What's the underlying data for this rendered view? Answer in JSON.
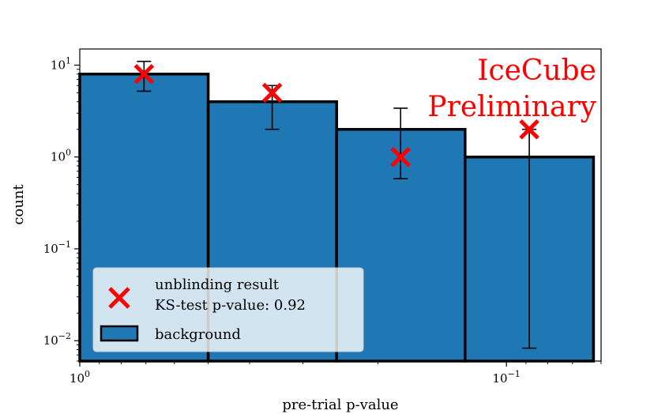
{
  "chart_data": {
    "type": "bar",
    "x_scale": "log-reversed",
    "y_scale": "log",
    "xlim": [
      1.0,
      0.06
    ],
    "ylim": [
      0.006,
      15
    ],
    "xlabel": "pre-trial p-value",
    "ylabel": "count",
    "x_ticks": [
      {
        "base": "10",
        "exp": "0",
        "value": 1.0
      },
      {
        "base": "10",
        "exp": "−1",
        "value": 0.1
      }
    ],
    "y_ticks": [
      {
        "base": "10",
        "exp": "1",
        "value": 10
      },
      {
        "base": "10",
        "exp": "0",
        "value": 1
      },
      {
        "base": "10",
        "exp": "−1",
        "value": 0.1
      },
      {
        "base": "10",
        "exp": "−2",
        "value": 0.01
      }
    ],
    "background": {
      "name": "background",
      "color": "#1f77b4",
      "bins": [
        {
          "x_from": 1.0,
          "x_to": 0.5,
          "count": 8
        },
        {
          "x_from": 0.5,
          "x_to": 0.25,
          "count": 4
        },
        {
          "x_from": 0.25,
          "x_to": 0.125,
          "count": 2
        },
        {
          "x_from": 0.125,
          "x_to": 0.0625,
          "count": 1
        }
      ],
      "errors": [
        {
          "x": 0.707,
          "low": 5.2,
          "high": 11.0
        },
        {
          "x": 0.354,
          "low": 2.0,
          "high": 6.0
        },
        {
          "x": 0.177,
          "low": 0.58,
          "high": 3.4
        },
        {
          "x": 0.0884,
          "low": 0.0083,
          "high": 2.0
        }
      ]
    },
    "unblinding": {
      "name": "unblinding result",
      "color": "#ff0000",
      "points": [
        {
          "x": 0.707,
          "y": 8
        },
        {
          "x": 0.354,
          "y": 5
        },
        {
          "x": 0.177,
          "y": 1
        },
        {
          "x": 0.0884,
          "y": 2
        }
      ]
    },
    "annotation": {
      "line1": "IceCube",
      "line2": "Preliminary",
      "color": "#ff0000",
      "position": "top-right"
    },
    "legend": {
      "position": "lower-left",
      "entries": [
        {
          "label": "unblinding result",
          "sublabel": "KS-test p-value: 0.92"
        },
        {
          "label": "background"
        }
      ]
    }
  }
}
